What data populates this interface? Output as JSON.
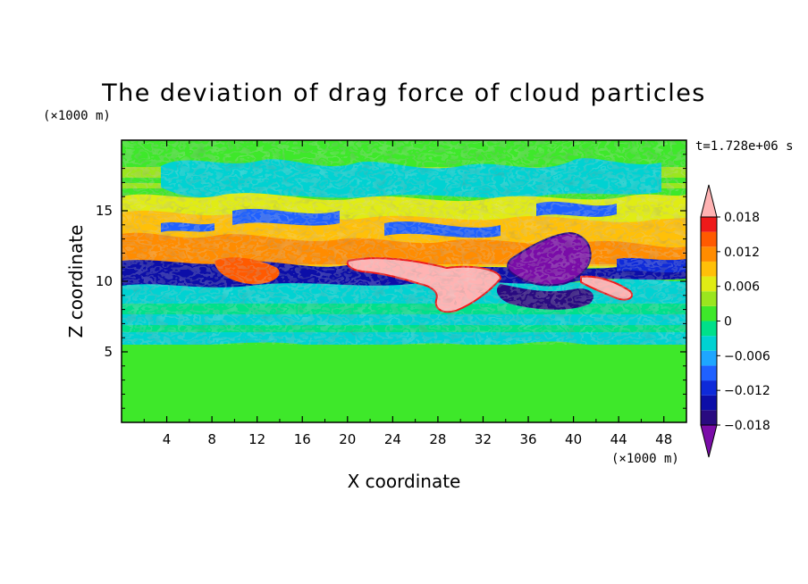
{
  "chart_data": {
    "type": "heatmap",
    "title": "The deviation of drag force of cloud particles",
    "xlabel": "X coordinate",
    "ylabel": "Z coordinate",
    "x_unit": "(×1000 m)",
    "y_unit": "(×1000 m)",
    "time_label": "t=1.728e+06 s",
    "xlim": [
      0,
      50
    ],
    "ylim": [
      0,
      20
    ],
    "xticks": [
      4,
      8,
      12,
      16,
      20,
      24,
      28,
      32,
      36,
      40,
      44,
      48
    ],
    "yticks": [
      5,
      10,
      15
    ],
    "colorbar": {
      "min": -0.021,
      "max": 0.021,
      "step": 0.003,
      "labeled_ticks": [
        {
          "value": 0.018,
          "label": "0.018"
        },
        {
          "value": 0.012,
          "label": "0.012"
        },
        {
          "value": 0.006,
          "label": "0.006"
        },
        {
          "value": 0,
          "label": "0"
        },
        {
          "value": -0.006,
          "label": "−0.006"
        },
        {
          "value": -0.012,
          "label": "−0.012"
        },
        {
          "value": -0.018,
          "label": "−0.018"
        }
      ],
      "colors": [
        "#7a0ca8",
        "#290a80",
        "#0c0ea8",
        "#0e2ad9",
        "#1f61ff",
        "#1ea6ff",
        "#00d2d2",
        "#00e08a",
        "#3ee82a",
        "#9be61e",
        "#e0ec14",
        "#ffc008",
        "#ff8c00",
        "#ff5a00",
        "#ee1a1a",
        "#ffb3b3"
      ],
      "extend": "both"
    }
  }
}
